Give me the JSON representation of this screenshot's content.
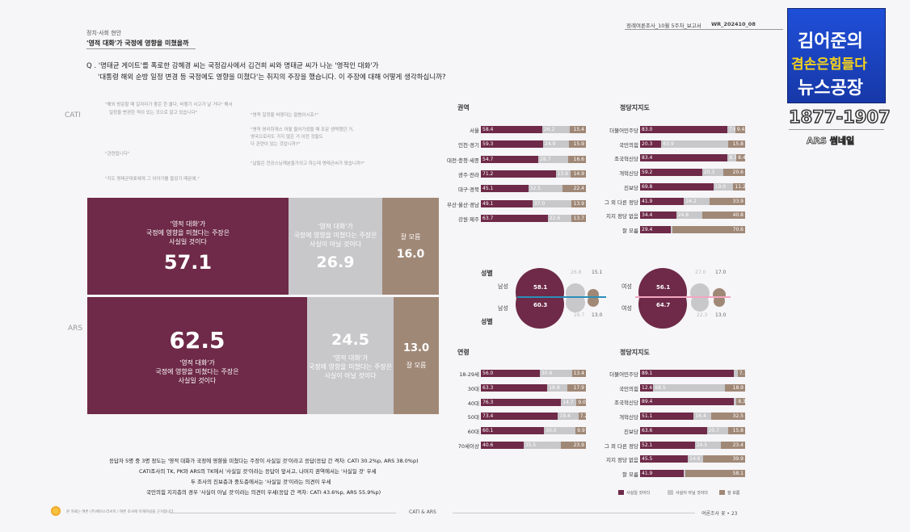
{
  "header": {
    "section": "정치·사회 현안",
    "subtitle": "'영적 대화'가 국정에 영향을 미쳤을까",
    "report": "정례여론조사_10월 5주차_보고서",
    "code": "WR_202410_08"
  },
  "question": {
    "line1": "Q . '명태균 게이트'를 폭로한 강혜경 씨는 국정감사에서 김건희 씨와 명태균 씨가 나눈 '영적인 대화'가",
    "line2": "'대통령 해외 순방 일정 변경 등 국정에도 영향을 미쳤다'는 취지의 주장을 했습니다. 이 주장에 대해 어떻게 생각하십니까?"
  },
  "quotes": [
    "\"해외 방문할 때 일자리가 좋은 한 쿨다, 비행기 사고가 날 거다\" 해서",
    "일정을 변경한 적이 있는 것으로 알고 있습니다\"",
    "\"영적 일정을 바꿨다는 말씀이시죠?\"",
    "\"영적 영리하게스 어떻 들어가셨을 때 조문 생략했던 거,",
    "영국으로라도 가지 않은 거 이런 것들도",
    "다 관련이 있는 것입니까?\"",
    "\"관련됩니다\"",
    "\"날들은 전공스님께분들가의고 하는데 명태균씨가 맞습니까?\"",
    "\"지도 명태균대표에게 그 이야기를 들었기 때문에,\""
  ],
  "modes": {
    "cati": "CATI",
    "ars": "ARS"
  },
  "main": {
    "cati": [
      {
        "label": "'영적 대화'가\n국정에 영향을 미쳤다는 주장은\n사실일 것이다",
        "value": "57.1"
      },
      {
        "label": "'영적 대화'가\n국정에 영향을 미쳤다는 주장은\n사실이 아닐 것이다",
        "value": "26.9"
      },
      {
        "label": "잘 모름",
        "value": "16.0"
      }
    ],
    "ars": [
      {
        "label": "'영적 대화'가\n국정에 영향을 미쳤다는 주장은\n사실일 것이다",
        "value": "62.5"
      },
      {
        "label": "'영적 대화'가\n국정에 영향을 미쳤다는 주장은\n사실이 아닐 것이다",
        "value": "24.5"
      },
      {
        "label": "잘 모름",
        "value": "13.0"
      }
    ]
  },
  "summary": [
    "응답자 5명 중 3명 정도는 '영적 대화가 국정에 영향을 미쳤다는 주장이 사실일 것'이라고 응답(응답 간 격차: CATI 30.2%p, ARS 38.0%p)",
    "CATI조사의 TK, PK와 ARS의 TK에서 '사실일 것'이라는 응답이 앞서고, 나머지 권역에서는 '사실일 것' 우세",
    "두 조사의 진보층과 중도층에서는 '사실일 것'이라는 의견이 우세",
    "국민의힘 지지층의 경우 '사실이 아닐 것'이라는 의견이 우세(응답 간 격차: CATI 43.6%p, ARS 55.9%p)"
  ],
  "footer": {
    "left": "본 자료는 여론 (주)에이스리서치 / 여론 조사에 이해하실을 근거합니다.",
    "center": "CATI & ARS",
    "right": "여론조사 꽃  •  23"
  },
  "colors": {
    "yes": "#6e2a48",
    "no": "#c8c7ca",
    "dk": "#a08877"
  },
  "chart_data": [
    {
      "type": "bar",
      "title": "권역",
      "mode": "CATI",
      "categories": [
        "서울",
        "인천·경기",
        "대전·충청·세종",
        "광주·전라",
        "대구·경북",
        "부산·울산·경남",
        "강원·제주"
      ],
      "series": [
        {
          "name": "사실일 것이다",
          "values": [
            "58.4",
            "59.3",
            "54.7",
            "71.2",
            "45.1",
            "49.1",
            "63.7"
          ]
        },
        {
          "name": "사실이 아닐 것이다",
          "values": [
            "26.2",
            "24.9",
            "28.7",
            "13.9",
            "32.5",
            "37.0",
            "22.6"
          ]
        },
        {
          "name": "잘 모름",
          "values": [
            "15.4",
            "15.9",
            "16.6",
            "14.9",
            "22.4",
            "13.9",
            "13.7"
          ]
        }
      ]
    },
    {
      "type": "bar",
      "title": "정당지지도",
      "mode": "CATI",
      "categories": [
        "더불어민주당",
        "국민의힘",
        "조국혁신당",
        "개혁신당",
        "진보당",
        "그 외 다른 정당",
        "지지 정당 없음",
        "잘 모름"
      ],
      "series": [
        {
          "name": "사실일 것이다",
          "values": [
            "83.0",
            "20.3",
            "83.4",
            "59.2",
            "69.8",
            "41.9",
            "34.4",
            "29.4"
          ]
        },
        {
          "name": "사실이 아닐 것이다",
          "values": [
            "7.6",
            "63.9",
            "8.3",
            "20.3",
            "19.0",
            "24.2",
            "24.8",
            ""
          ]
        },
        {
          "name": "잘 모름",
          "values": [
            "9.4",
            "15.8",
            "8.4",
            "20.6",
            "11.2",
            "33.9",
            "40.8",
            "70.6"
          ]
        }
      ]
    },
    {
      "type": "bubble",
      "title": "성별",
      "mode": "CATI / ARS",
      "groups": [
        {
          "label": "남성",
          "cati": [
            "58.1",
            "26.8",
            "15.1"
          ],
          "ars": [
            "60.3",
            "26.7",
            "13.0"
          ]
        },
        {
          "label": "여성",
          "cati": [
            "56.1",
            "27.0",
            "17.0"
          ],
          "ars": [
            "64.7",
            "22.3",
            "13.0"
          ]
        }
      ]
    },
    {
      "type": "bar",
      "title": "연령",
      "mode": "ARS",
      "categories": [
        "18-29세",
        "30대",
        "40대",
        "50대",
        "60대",
        "70세이상"
      ],
      "series": [
        {
          "name": "사실일 것이다",
          "values": [
            "56.0",
            "63.3",
            "76.3",
            "73.4",
            "60.1",
            "40.6"
          ]
        },
        {
          "name": "사실이 아닐 것이다",
          "values": [
            "30.6",
            "18.8",
            "14.7",
            "19.4",
            "30.0",
            "35.5"
          ]
        },
        {
          "name": "잘 모름",
          "values": [
            "13.4",
            "17.9",
            "9.0",
            "7.2",
            "9.9",
            "23.9"
          ]
        }
      ]
    },
    {
      "type": "bar",
      "title": "정당지지도",
      "mode": "ARS",
      "categories": [
        "더불어민주당",
        "국민의힘",
        "조국혁신당",
        "개혁신당",
        "진보당",
        "그 외 다른 정당",
        "지지 정당 없음",
        "잘 모름"
      ],
      "series": [
        {
          "name": "사실일 것이다",
          "values": [
            "89.1",
            "12.6",
            "89.4",
            "51.1",
            "63.6",
            "52.1",
            "45.5",
            "41.9"
          ]
        },
        {
          "name": "사실이 아닐 것이다",
          "values": [
            "",
            "68.5",
            "",
            "16.4",
            "20.7",
            "24.5",
            "14.6",
            ""
          ]
        },
        {
          "name": "잘 모름",
          "values": [
            "7.1",
            "18.9",
            "8.3",
            "32.5",
            "15.8",
            "23.4",
            "39.9",
            "58.1"
          ]
        }
      ]
    }
  ],
  "legend": [
    "사실일 것이다",
    "사실이 아닐 것이다",
    "잘 모름"
  ],
  "overlay": {
    "brand_line1": "김어준의",
    "brand_line2": "겸손은힘들다",
    "brand_line3": "뉴스공장",
    "phone": "1877-1907",
    "ars_label": "ARS 썸네일"
  }
}
